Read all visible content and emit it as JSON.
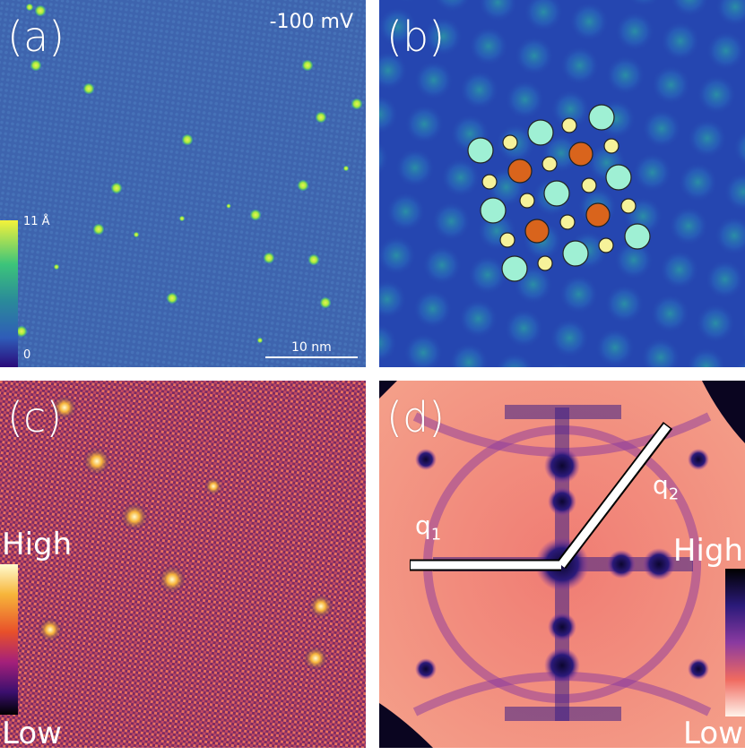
{
  "panels": {
    "a": {
      "label": "(a)",
      "voltage": "-100 mV",
      "scale_bar": "10 nm",
      "colorbar": {
        "top_tick": "11 Å",
        "bottom_tick": "0",
        "colors": [
          "#f4f23a",
          "#3cc47a",
          "#2a8a9a",
          "#2f5cb8",
          "#2a0a7a"
        ]
      }
    },
    "b": {
      "label": "(b)"
    },
    "c": {
      "label": "(c)",
      "colorbar": {
        "high": "High",
        "low": "Low",
        "colors": [
          "#fffbd0",
          "#f7b53a",
          "#e8502a",
          "#a4207a",
          "#3b0f6e",
          "#000000"
        ]
      }
    },
    "d": {
      "label": "(d)",
      "q1": "q",
      "q1_sub": "1",
      "q2": "q",
      "q2_sub": "2",
      "colorbar": {
        "high": "High",
        "low": "Low",
        "colors": [
          "#000000",
          "#2b1a7a",
          "#8a3aa0",
          "#f06a60",
          "#fff3ea"
        ]
      }
    }
  },
  "colors": {
    "stm_background": "#3e64ae",
    "adatom": "#a8ec3a",
    "lattice_big": "#9ff0d4",
    "lattice_small": "#f6f29a",
    "lattice_orange": "#d9641c",
    "qpi_background": "#e8705e",
    "fft_background": "#f07c73",
    "fft_dark": "#1c0e60"
  }
}
